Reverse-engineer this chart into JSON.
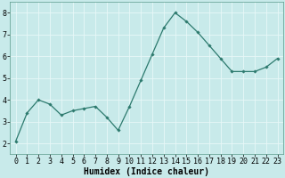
{
  "x": [
    0,
    1,
    2,
    3,
    4,
    5,
    6,
    7,
    8,
    9,
    10,
    11,
    12,
    13,
    14,
    15,
    16,
    17,
    18,
    19,
    20,
    21,
    22,
    23
  ],
  "y": [
    2.1,
    3.4,
    4.0,
    3.8,
    3.3,
    3.5,
    3.6,
    3.7,
    3.2,
    2.6,
    3.7,
    4.9,
    6.1,
    7.3,
    8.0,
    7.6,
    7.1,
    6.5,
    5.9,
    5.3,
    5.3,
    5.3,
    5.5,
    5.9
  ],
  "xlabel": "Humidex (Indice chaleur)",
  "ylim": [
    1.5,
    8.5
  ],
  "xlim": [
    -0.5,
    23.5
  ],
  "yticks": [
    2,
    3,
    4,
    5,
    6,
    7,
    8
  ],
  "xtick_labels": [
    "0",
    "1",
    "2",
    "3",
    "4",
    "5",
    "6",
    "7",
    "8",
    "9",
    "10",
    "11",
    "12",
    "13",
    "14",
    "15",
    "16",
    "17",
    "18",
    "19",
    "20",
    "21",
    "22",
    "23"
  ],
  "line_color": "#2d7a6e",
  "marker_color": "#2d7a6e",
  "bg_color": "#c8eaea",
  "grid_color": "#e8f8f8",
  "marker": "D",
  "marker_size": 1.8,
  "line_width": 0.9,
  "xlabel_fontsize": 7,
  "tick_fontsize": 6,
  "spine_color": "#5a9a8a"
}
